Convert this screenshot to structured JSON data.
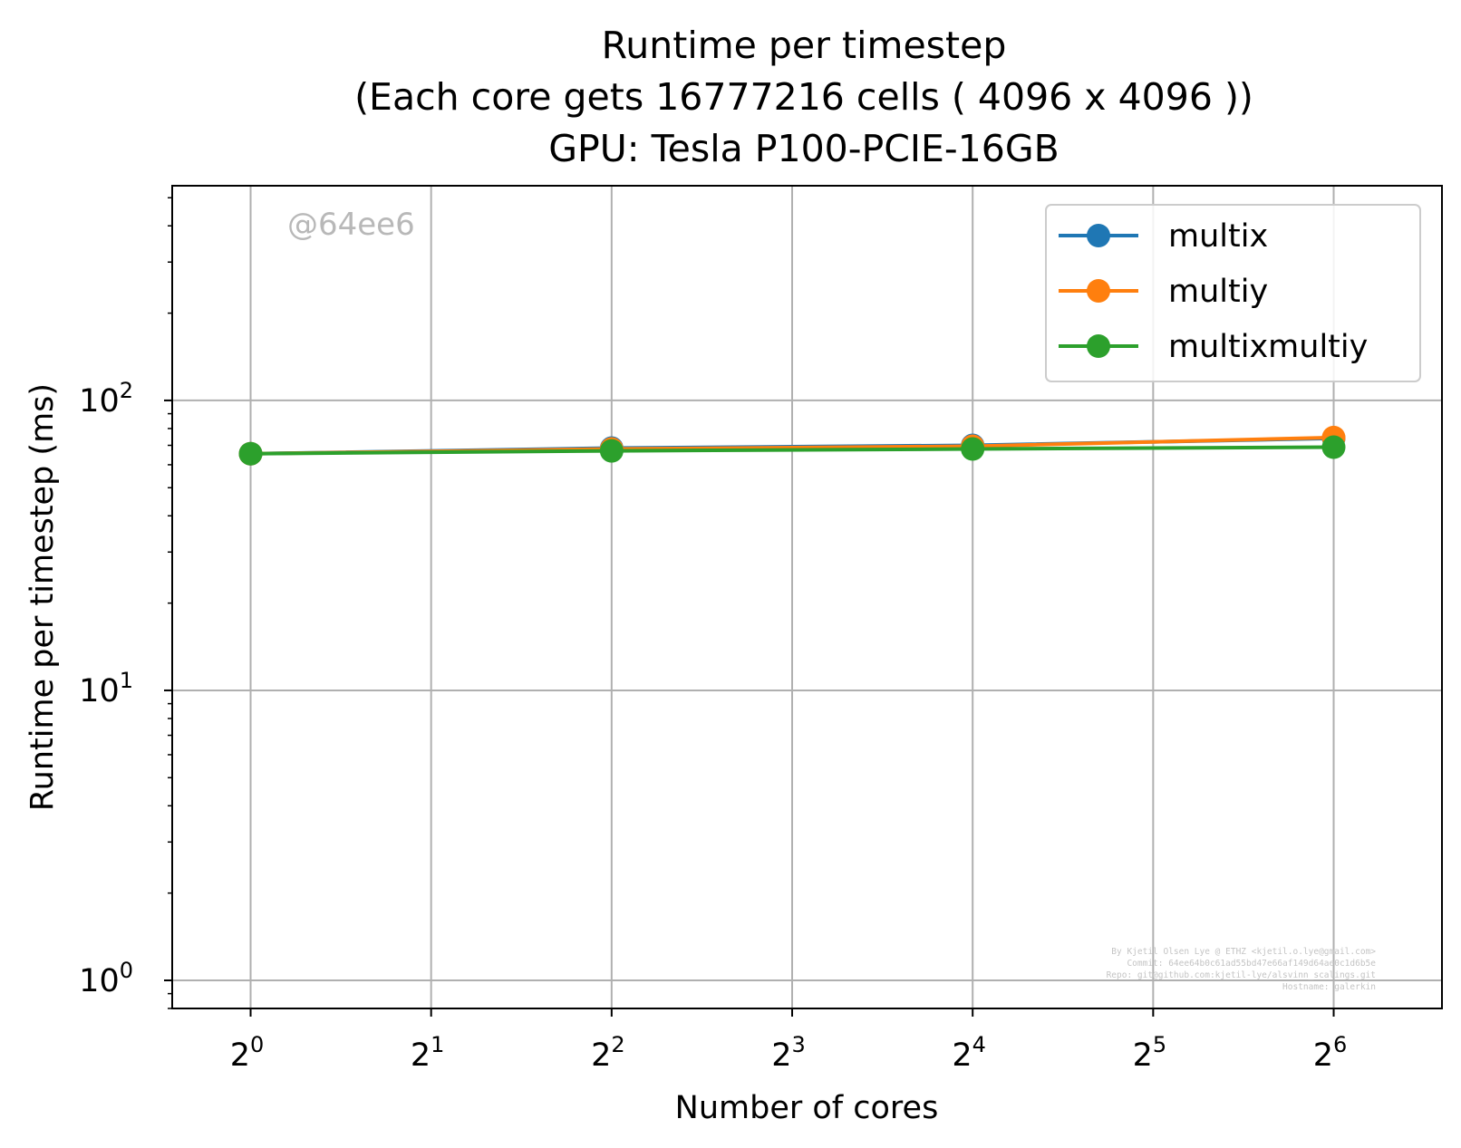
{
  "chart_data": {
    "type": "line",
    "title_lines": [
      "Runtime per timestep",
      "(Each core gets 16777216 cells ( 4096 x 4096 ))",
      "GPU: Tesla P100-PCIE-16GB"
    ],
    "xlabel": "Number of cores",
    "ylabel": "Runtime per timestep (ms)",
    "x_scale": "log2",
    "y_scale": "log10",
    "x": [
      1,
      4,
      16,
      64
    ],
    "xlim": [
      0.74,
      97
    ],
    "ylim": [
      0.8,
      550
    ],
    "x_ticks": [
      {
        "base": "2",
        "exp": "0",
        "value": 1
      },
      {
        "base": "2",
        "exp": "1",
        "value": 2
      },
      {
        "base": "2",
        "exp": "2",
        "value": 4
      },
      {
        "base": "2",
        "exp": "3",
        "value": 8
      },
      {
        "base": "2",
        "exp": "4",
        "value": 16
      },
      {
        "base": "2",
        "exp": "5",
        "value": 32
      },
      {
        "base": "2",
        "exp": "6",
        "value": 64
      }
    ],
    "y_ticks": [
      {
        "base": "10",
        "exp": "0",
        "value": 1
      },
      {
        "base": "10",
        "exp": "1",
        "value": 10
      },
      {
        "base": "10",
        "exp": "2",
        "value": 100
      }
    ],
    "grid": true,
    "legend_position": "top-right",
    "series": [
      {
        "name": "multix",
        "color": "#1f77b4",
        "values": [
          65.5,
          68.5,
          70.0,
          74.0
        ]
      },
      {
        "name": "multiy",
        "color": "#ff7f0e",
        "values": [
          65.5,
          68.0,
          69.5,
          74.5
        ]
      },
      {
        "name": "multixmultiy",
        "color": "#2ca02c",
        "values": [
          65.5,
          67.0,
          68.0,
          69.0
        ]
      }
    ],
    "watermark": "@64ee6",
    "footer_lines": [
      "By Kjetil Olsen Lye @ ETHZ <kjetil.o.lye@gmail.com>",
      "Commit: 64ee64b0c61ad55bd47e66af149d64ae0c1d6b5e",
      "Repo: git@github.com:kjetil-lye/alsvinn_scalings.git",
      "Hostname: galerkin"
    ]
  }
}
